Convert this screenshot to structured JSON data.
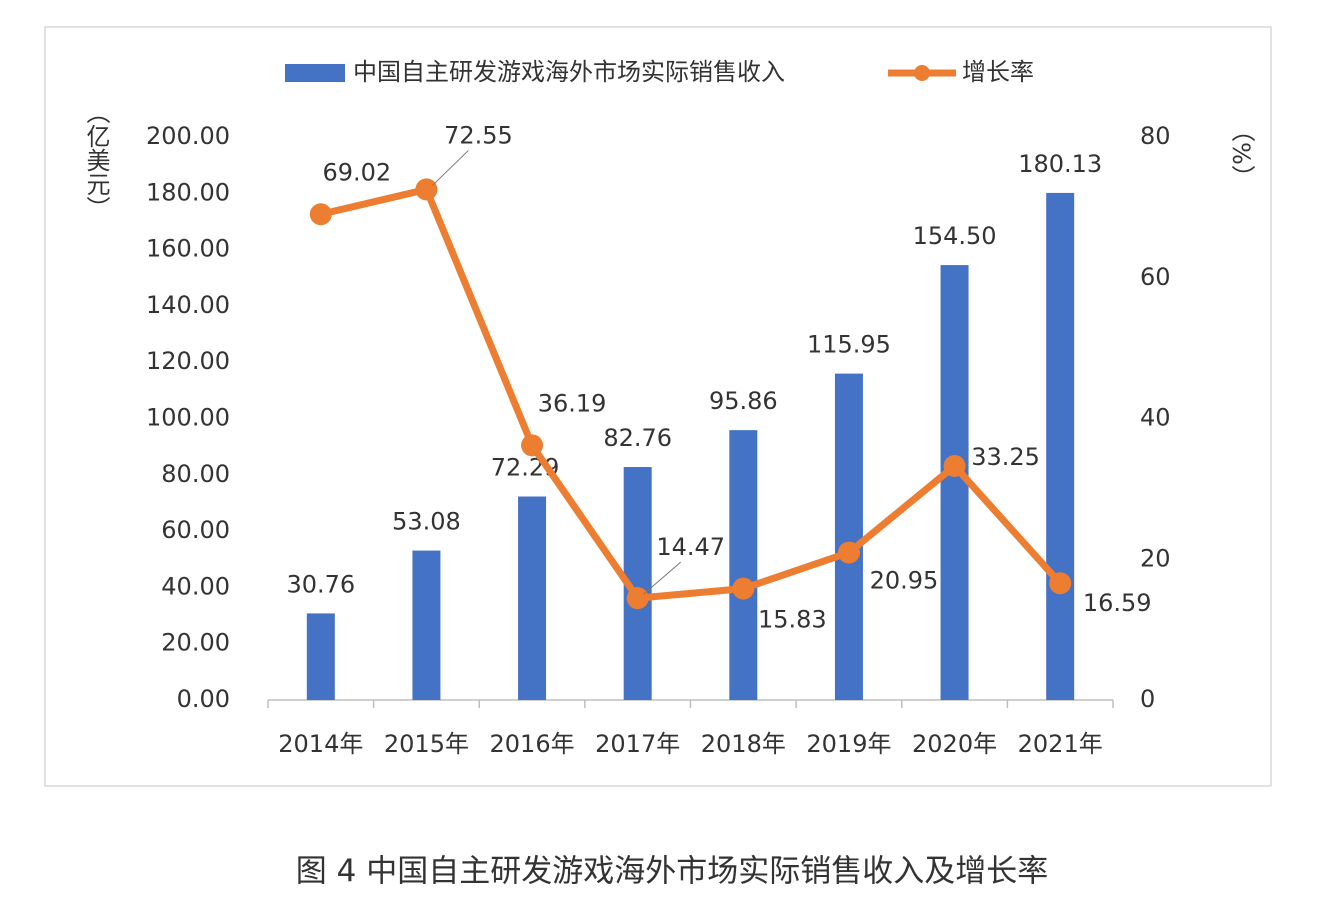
{
  "chart_data": {
    "type": "bar-line",
    "title": "图 4 中国自主研发游戏海外市场实际销售收入及增长率",
    "y_label": "（亿美元）",
    "y2_label": "（%）",
    "categories": [
      "2014年",
      "2015年",
      "2016年",
      "2017年",
      "2018年",
      "2019年",
      "2020年",
      "2021年"
    ],
    "series": [
      {
        "name": "中国自主研发游戏海外市场实际销售收入",
        "type": "bar",
        "color": "#4472c4",
        "values": [
          30.76,
          53.08,
          72.29,
          82.76,
          95.86,
          115.95,
          154.5,
          180.13
        ],
        "value_labels": [
          "30.76",
          "53.08",
          "72.29",
          "82.76",
          "95.86",
          "115.95",
          "154.50",
          "180.13"
        ]
      },
      {
        "name": "增长率",
        "type": "line",
        "axis": "y2",
        "color": "#ed7d31",
        "values": [
          69.02,
          72.55,
          36.19,
          14.47,
          15.83,
          20.95,
          33.25,
          16.59
        ]
      }
    ],
    "ylim": [
      0,
      200
    ],
    "yticks": [
      {
        "value": 0,
        "label": "0.00"
      },
      {
        "value": 20,
        "label": "20.00"
      },
      {
        "value": 40,
        "label": "40.00"
      },
      {
        "value": 60,
        "label": "60.00"
      },
      {
        "value": 80,
        "label": "80.00"
      },
      {
        "value": 100,
        "label": "100.00"
      },
      {
        "value": 120,
        "label": "120.00"
      },
      {
        "value": 140,
        "label": "140.00"
      },
      {
        "value": 160,
        "label": "160.00"
      },
      {
        "value": 180,
        "label": "180.00"
      },
      {
        "value": 200,
        "label": "200.00"
      }
    ],
    "y2lim": [
      0,
      80
    ],
    "y2ticks": [
      0,
      20,
      40,
      60,
      80
    ],
    "legend": "top"
  }
}
